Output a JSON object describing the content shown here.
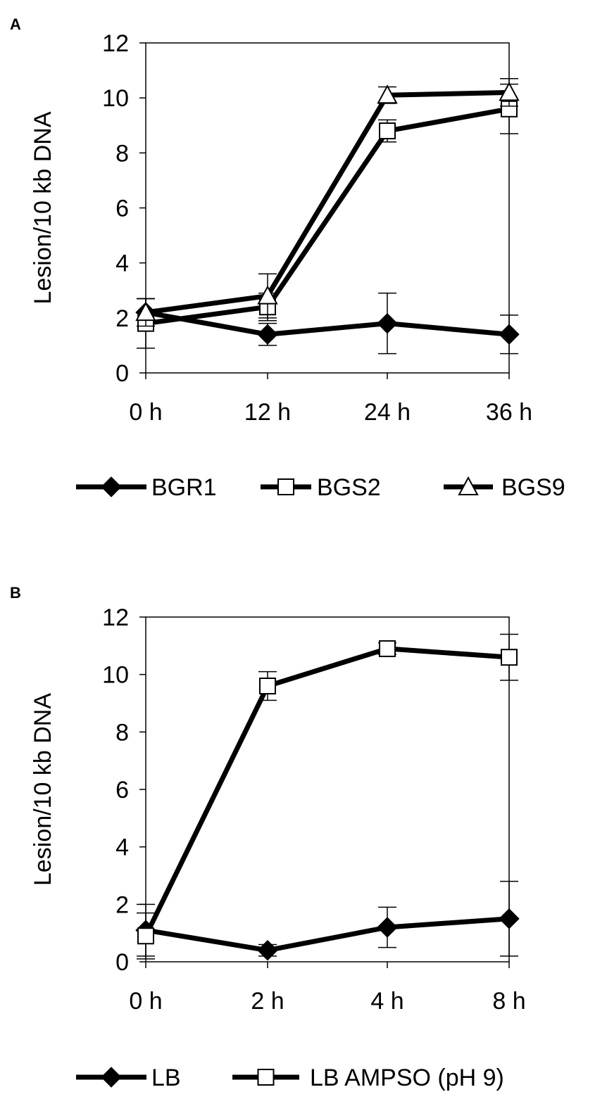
{
  "chart_data": [
    {
      "panel": "A",
      "type": "line",
      "categories": [
        "0 h",
        "12 h",
        "24 h",
        "36 h"
      ],
      "ylabel": "Lesion/10 kb DNA",
      "ylim": [
        0,
        12
      ],
      "yticks": [
        "0",
        "2",
        "4",
        "6",
        "8",
        "10",
        "12"
      ],
      "grid": false,
      "legend_position": "bottom",
      "series": [
        {
          "name": "BGR1",
          "marker": "diamond-filled",
          "values": [
            2.2,
            1.4,
            1.8,
            1.4
          ],
          "errors": [
            0.5,
            0.4,
            1.1,
            0.7
          ]
        },
        {
          "name": "BGS2",
          "marker": "square-open",
          "values": [
            1.8,
            2.4,
            8.8,
            9.6
          ],
          "errors": [
            0.9,
            0.5,
            0.4,
            0.9
          ]
        },
        {
          "name": "BGS9",
          "marker": "triangle-open",
          "values": [
            2.2,
            2.8,
            10.1,
            10.2
          ],
          "errors": [
            0.5,
            0.8,
            0.3,
            0.5
          ]
        }
      ]
    },
    {
      "panel": "B",
      "type": "line",
      "categories": [
        "0 h",
        "2 h",
        "4 h",
        "8 h"
      ],
      "ylabel": "Lesion/10 kb DNA",
      "ylim": [
        0,
        12
      ],
      "yticks": [
        "0",
        "2",
        "4",
        "6",
        "8",
        "10",
        "12"
      ],
      "grid": false,
      "legend_position": "bottom",
      "series": [
        {
          "name": "LB",
          "marker": "diamond-filled",
          "values": [
            1.1,
            0.4,
            1.2,
            1.5
          ],
          "errors": [
            0.9,
            0.2,
            0.7,
            1.3
          ]
        },
        {
          "name": "LB AMPSO (pH 9)",
          "marker": "square-open",
          "values": [
            0.9,
            9.6,
            10.9,
            10.6
          ],
          "errors": [
            0.8,
            0.5,
            0.2,
            0.8
          ]
        }
      ]
    }
  ],
  "panel_labels": [
    "A",
    "B"
  ]
}
